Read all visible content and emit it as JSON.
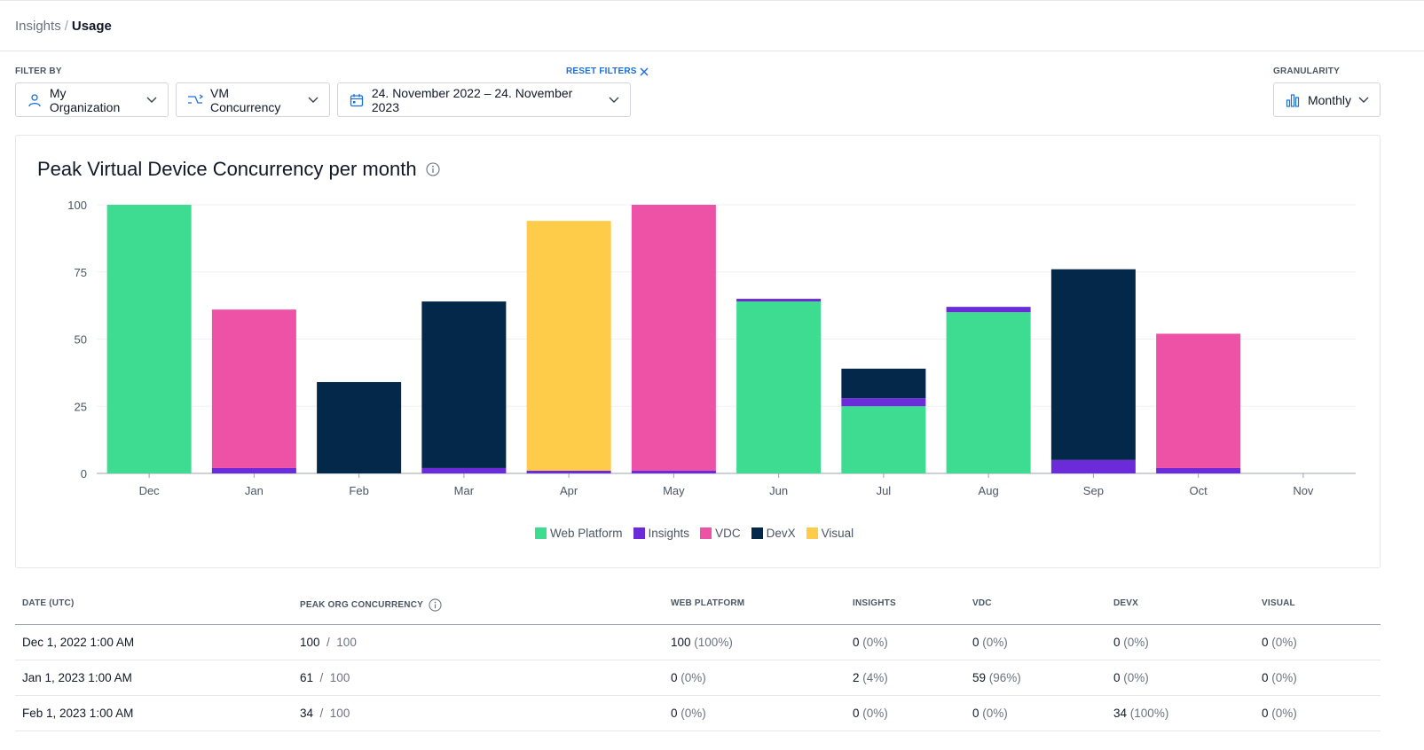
{
  "breadcrumb": {
    "parent": "Insights",
    "separator": "/",
    "current": "Usage"
  },
  "filters": {
    "label": "FILTER BY",
    "reset_label": "RESET FILTERS",
    "organization": "My Organization",
    "metric": "VM Concurrency",
    "date_range": "24. November 2022 – 24. November 2023",
    "granularity_label": "GRANULARITY",
    "granularity": "Monthly"
  },
  "colors": {
    "web_platform": "#3ddc91",
    "insights": "#6c2bd9",
    "vdc": "#ee52a6",
    "devx": "#03284a",
    "visual": "#ffcc4a"
  },
  "chart_data": {
    "type": "bar",
    "stacked": true,
    "title": "Peak Virtual Device Concurrency per month",
    "xlabel": "",
    "ylabel": "",
    "ylim": [
      0,
      100
    ],
    "yticks": [
      0,
      25,
      50,
      75,
      100
    ],
    "grid": true,
    "legend_position": "bottom",
    "categories": [
      "Dec",
      "Jan",
      "Feb",
      "Mar",
      "Apr",
      "May",
      "Jun",
      "Jul",
      "Aug",
      "Sep",
      "Oct",
      "Nov"
    ],
    "series": [
      {
        "name": "Web Platform",
        "key": "web_platform",
        "values": [
          100,
          0,
          0,
          0,
          0,
          0,
          64,
          25,
          60,
          0,
          0,
          0
        ]
      },
      {
        "name": "Insights",
        "key": "insights",
        "values": [
          0,
          2,
          0,
          2,
          1,
          1,
          1,
          3,
          2,
          5,
          2,
          0
        ]
      },
      {
        "name": "VDC",
        "key": "vdc",
        "values": [
          0,
          59,
          0,
          0,
          0,
          99,
          0,
          0,
          0,
          0,
          50,
          0
        ]
      },
      {
        "name": "DevX",
        "key": "devx",
        "values": [
          0,
          0,
          34,
          62,
          0,
          0,
          0,
          11,
          0,
          71,
          0,
          0
        ]
      },
      {
        "name": "Visual",
        "key": "visual",
        "values": [
          0,
          0,
          0,
          0,
          93,
          0,
          0,
          0,
          0,
          0,
          0,
          0
        ]
      }
    ]
  },
  "table": {
    "headers": {
      "date": "DATE (UTC)",
      "peak": "PEAK ORG CONCURRENCY",
      "web": "WEB PLATFORM",
      "insights": "INSIGHTS",
      "vdc": "VDC",
      "devx": "DEVX",
      "visual": "VISUAL"
    },
    "rows": [
      {
        "date": "Dec 1, 2022 1:00 AM",
        "peak": "100",
        "limit": "100",
        "web": "100",
        "web_pct": "(100%)",
        "insights": "0",
        "insights_pct": "(0%)",
        "vdc": "0",
        "vdc_pct": "(0%)",
        "devx": "0",
        "devx_pct": "(0%)",
        "visual": "0",
        "visual_pct": "(0%)"
      },
      {
        "date": "Jan 1, 2023 1:00 AM",
        "peak": "61",
        "limit": "100",
        "web": "0",
        "web_pct": "(0%)",
        "insights": "2",
        "insights_pct": "(4%)",
        "vdc": "59",
        "vdc_pct": "(96%)",
        "devx": "0",
        "devx_pct": "(0%)",
        "visual": "0",
        "visual_pct": "(0%)"
      },
      {
        "date": "Feb 1, 2023 1:00 AM",
        "peak": "34",
        "limit": "100",
        "web": "0",
        "web_pct": "(0%)",
        "insights": "0",
        "insights_pct": "(0%)",
        "vdc": "0",
        "vdc_pct": "(0%)",
        "devx": "34",
        "devx_pct": "(100%)",
        "visual": "0",
        "visual_pct": "(0%)"
      }
    ]
  }
}
